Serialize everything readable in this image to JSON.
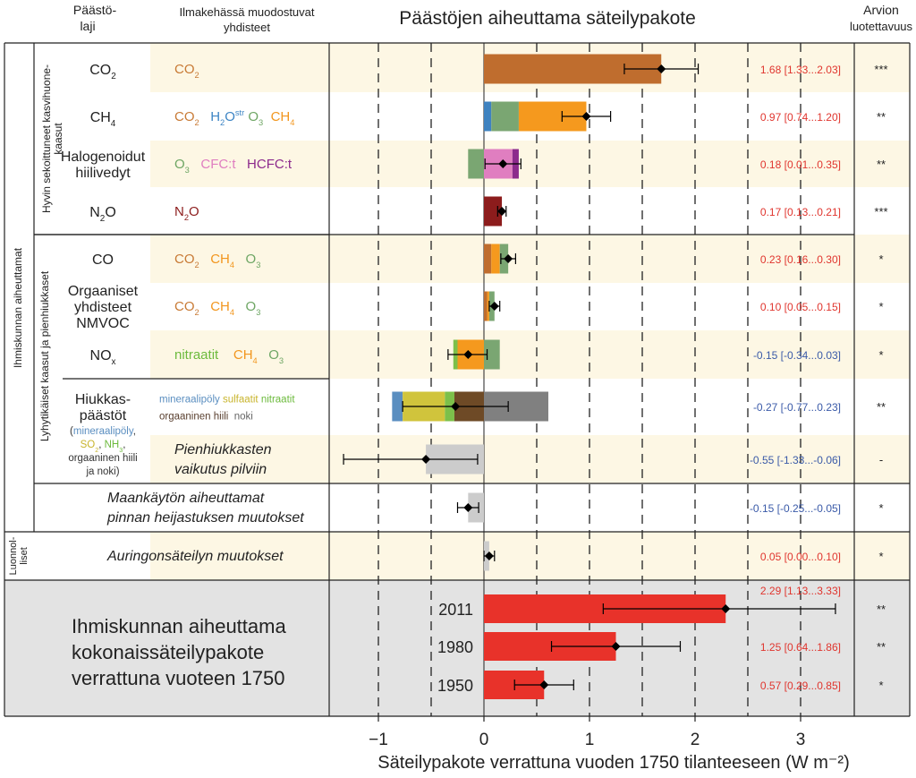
{
  "header": {
    "col_laji": [
      "Päästö-",
      "laji"
    ],
    "col_yhdisteet": [
      "Ilmakehässä muodostuvat",
      "yhdisteet"
    ],
    "title": "Päästöjen aiheuttama säteilypakote",
    "col_arvio": [
      "Arvion",
      "luotettavuus"
    ]
  },
  "groups": {
    "ihmiskunta": "Ihmiskunnan aiheuttamat",
    "hyvin": [
      "Hyvin sekoittuneet kasvihuone-",
      "kaasut"
    ],
    "lyhyt": "Lyhytikäiset kaasut ja pienhiukkaset",
    "luonnolliset": [
      "Luonnol-",
      "liset"
    ]
  },
  "rows": [
    {
      "label_lines": [
        [
          "CO",
          {
            "sub": "2"
          }
        ]
      ],
      "compounds": [
        [
          {
            "t": "CO",
            "c": "#c87a35"
          },
          {
            "sub": "2",
            "c": "#c87a35"
          }
        ]
      ],
      "value_text": "1.68 [1.33...2.03]",
      "confidence": "***"
    },
    {
      "label_lines": [
        [
          "CH",
          {
            "sub": "4"
          }
        ]
      ],
      "compounds": [
        [
          {
            "t": "CO",
            "c": "#c87a35"
          },
          {
            "sub": "2",
            "c": "#c87a35"
          },
          {
            "t": "   "
          },
          {
            "t": "H",
            "c": "#3c84c4"
          },
          {
            "sub": "2",
            "c": "#3c84c4"
          },
          {
            "t": "O",
            "c": "#3c84c4"
          },
          {
            "sup": "str",
            "c": "#3c84c4"
          },
          {
            "t": " "
          },
          {
            "t": "O",
            "c": "#6ea664"
          },
          {
            "sub": "3",
            "c": "#6ea664"
          },
          {
            "t": "  "
          },
          {
            "t": "CH",
            "c": "#f2961e"
          },
          {
            "sub": "4",
            "c": "#f2961e"
          }
        ]
      ],
      "value_text": "0.97 [0.74...1.20]",
      "confidence": "**"
    },
    {
      "label_lines": [
        [
          "Halogenoidut"
        ],
        [
          "hiilivedyt"
        ]
      ],
      "compounds": [
        [
          {
            "t": "O",
            "c": "#6ea664"
          },
          {
            "sub": "3",
            "c": "#6ea664"
          },
          {
            "t": "   "
          },
          {
            "t": "CFC:t",
            "c": "#e07ec0"
          },
          {
            "t": "   "
          },
          {
            "t": "HCFC:t",
            "c": "#8c2a8c"
          }
        ]
      ],
      "value_text": "0.18 [0.01...0.35]",
      "confidence": "**"
    },
    {
      "label_lines": [
        [
          "N",
          {
            "sub": "2"
          },
          "O"
        ]
      ],
      "compounds": [
        [
          {
            "t": "N",
            "c": "#8c1c1c"
          },
          {
            "sub": "2",
            "c": "#8c1c1c"
          },
          {
            "t": "O",
            "c": "#8c1c1c"
          }
        ]
      ],
      "value_text": "0.17 [0.13...0.21]",
      "confidence": "***"
    },
    {
      "label_lines": [
        [
          "CO"
        ]
      ],
      "compounds": [
        [
          {
            "t": "CO",
            "c": "#c87a35"
          },
          {
            "sub": "2",
            "c": "#c87a35"
          },
          {
            "t": "   "
          },
          {
            "t": "CH",
            "c": "#f2961e"
          },
          {
            "sub": "4",
            "c": "#f2961e"
          },
          {
            "t": "   "
          },
          {
            "t": "O",
            "c": "#6ea664"
          },
          {
            "sub": "3",
            "c": "#6ea664"
          }
        ]
      ],
      "value_text": "0.23 [0.16...0.30]",
      "confidence": "*"
    },
    {
      "label_lines": [
        [
          "Orgaaniset"
        ],
        [
          "yhdisteet"
        ],
        [
          "NMVOC"
        ]
      ],
      "compounds": [
        [
          {
            "t": "CO",
            "c": "#c87a35"
          },
          {
            "sub": "2",
            "c": "#c87a35"
          },
          {
            "t": "   "
          },
          {
            "t": "CH",
            "c": "#f2961e"
          },
          {
            "sub": "4",
            "c": "#f2961e"
          },
          {
            "t": "   "
          },
          {
            "t": "O",
            "c": "#6ea664"
          },
          {
            "sub": "3",
            "c": "#6ea664"
          }
        ]
      ],
      "value_text": "0.10 [0.05...0.15]",
      "confidence": "*"
    },
    {
      "label_lines": [
        [
          "NO",
          {
            "sub": "x"
          }
        ]
      ],
      "compounds": [
        [
          {
            "t": "nitraatit",
            "c": "#6cba3c"
          },
          {
            "t": "    "
          },
          {
            "t": "CH",
            "c": "#f2961e"
          },
          {
            "sub": "4",
            "c": "#f2961e"
          },
          {
            "t": "   "
          },
          {
            "t": "O",
            "c": "#6ea664"
          },
          {
            "sub": "3",
            "c": "#6ea664"
          }
        ]
      ],
      "value_text": "-0.15 [-0.34...0.03]",
      "confidence": "*"
    },
    {
      "label_lines": [
        [
          "Hiukkas-"
        ],
        [
          "päästöt"
        ]
      ],
      "compounds": [
        [
          {
            "t": "mineraalipöly",
            "c": "#5a8ec0"
          },
          {
            "t": " "
          },
          {
            "t": "sulfaatit",
            "c": "#c8b42c"
          },
          {
            "t": " "
          },
          {
            "t": "nitraatit",
            "c": "#6cba3c"
          }
        ],
        [
          {
            "t": "orgaaninen hiili",
            "c": "#5a4030"
          },
          {
            "t": "  "
          },
          {
            "t": "noki",
            "c": "#666666"
          }
        ]
      ],
      "value_text": "-0.27 [-0.77...0.23]",
      "confidence": "**"
    },
    {
      "label_lines": [],
      "compounds": [
        [
          {
            "t": "Pienhiukkasten",
            "i": true
          }
        ],
        [
          {
            "t": "vaikutus pilviin",
            "i": true
          }
        ]
      ],
      "value_text": "-0.55 [-1.33...-0.06]",
      "confidence": "-"
    },
    {
      "label_lines": [],
      "compounds": [
        [
          {
            "t": "Maankäytön aiheuttamat",
            "i": true
          }
        ],
        [
          {
            "t": "pinnan heijastuksen muutokset",
            "i": true
          }
        ]
      ],
      "value_text": "-0.15 [-0.25...-0.05]",
      "confidence": "*"
    },
    {
      "label_lines": [],
      "compounds": [
        [
          {
            "t": "Auringonsäteilyn muutokset",
            "i": true
          }
        ]
      ],
      "value_text": "0.05 [0.00...0.10]",
      "confidence": "*"
    }
  ],
  "aerosol_note": [
    [
      {
        "t": "("
      },
      {
        "t": "mineraalipöly",
        "c": "#5a8ec0"
      },
      {
        "t": ","
      }
    ],
    [
      {
        "t": "SO",
        "c": "#c8b42c"
      },
      {
        "sub": "2",
        "c": "#c8b42c"
      },
      {
        "t": ", "
      },
      {
        "t": "NH",
        "c": "#6cba3c"
      },
      {
        "sub": "3",
        "c": "#6cba3c"
      },
      {
        "t": ","
      }
    ],
    [
      {
        "t": "orgaaninen hiili"
      }
    ],
    [
      {
        "t": "ja noki)"
      }
    ]
  ],
  "total": {
    "heading": [
      "Ihmiskunnan aiheuttama",
      "kokonaissäteilypakote",
      "verrattuna vuoteen 1750"
    ],
    "years": [
      {
        "year": "2011",
        "value_text": "2.29 [1.13...3.33]",
        "confidence": "**"
      },
      {
        "year": "1980",
        "value_text": "1.25 [0.64...1.86]",
        "confidence": "**"
      },
      {
        "year": "1950",
        "value_text": "0.57 [0.29...0.85]",
        "confidence": "*"
      }
    ]
  },
  "chart_data": {
    "type": "bar",
    "orientation": "horizontal stacked",
    "title": "Päästöjen aiheuttama säteilypakote",
    "xlabel": "Säteilypakote verrattuna vuoden 1750 tilanteeseen (W m⁻²)",
    "xlim": [
      -1.5,
      3.5
    ],
    "xticks": [
      -1,
      0,
      1,
      2,
      3
    ],
    "xtick_labels": [
      "−1",
      "0",
      "1",
      "2",
      "3"
    ],
    "dashed_gridlines": [
      -1,
      -0.5,
      0.5,
      1,
      1.5,
      2,
      2.5,
      3
    ],
    "colors": {
      "CO2": "#bf6d2e",
      "H2O": "#3e82c0",
      "O3": "#7aa672",
      "CH4": "#f5991e",
      "CFC": "#e07ec0",
      "HCFC": "#8c2a8c",
      "N2O": "#8c1c1c",
      "dust": "#5a8ec0",
      "sulfate": "#d0c43c",
      "nitrate": "#7cc04a",
      "organic_carbon": "#6e4a26",
      "black_carbon": "#808080",
      "cloud": "#cccccc",
      "albedo": "#cccccc",
      "solar": "#cccccc",
      "total": "#e8322a"
    },
    "rows": [
      {
        "name": "CO2",
        "segments": [
          {
            "c": "CO2",
            "from": 0,
            "to": 1.68
          }
        ],
        "best": 1.68,
        "low": 1.33,
        "high": 2.03
      },
      {
        "name": "CH4",
        "segments": [
          {
            "c": "H2O",
            "from": 0,
            "to": 0.07
          },
          {
            "c": "O3",
            "from": 0.07,
            "to": 0.33
          },
          {
            "c": "CH4",
            "from": 0.33,
            "to": 0.97
          }
        ],
        "best": 0.97,
        "low": 0.74,
        "high": 1.2
      },
      {
        "name": "Halogenoidut hiilivedyt",
        "segments": [
          {
            "c": "O3",
            "from": -0.15,
            "to": 0
          },
          {
            "c": "CFC",
            "from": 0,
            "to": 0.27
          },
          {
            "c": "HCFC",
            "from": 0.27,
            "to": 0.33
          }
        ],
        "best": 0.18,
        "low": 0.01,
        "high": 0.35
      },
      {
        "name": "N2O",
        "segments": [
          {
            "c": "N2O",
            "from": 0,
            "to": 0.17
          }
        ],
        "best": 0.17,
        "low": 0.13,
        "high": 0.21
      },
      {
        "name": "CO",
        "segments": [
          {
            "c": "CO2",
            "from": 0,
            "to": 0.07
          },
          {
            "c": "CH4",
            "from": 0.07,
            "to": 0.15
          },
          {
            "c": "O3",
            "from": 0.15,
            "to": 0.23
          }
        ],
        "best": 0.23,
        "low": 0.16,
        "high": 0.3
      },
      {
        "name": "NMVOC",
        "segments": [
          {
            "c": "CO2",
            "from": 0,
            "to": 0.03
          },
          {
            "c": "CH4",
            "from": 0.03,
            "to": 0.05
          },
          {
            "c": "O3",
            "from": 0.05,
            "to": 0.1
          }
        ],
        "best": 0.1,
        "low": 0.05,
        "high": 0.15
      },
      {
        "name": "NOx",
        "segments": [
          {
            "c": "nitrate",
            "from": -0.29,
            "to": -0.25
          },
          {
            "c": "CH4",
            "from": -0.25,
            "to": 0
          },
          {
            "c": "O3",
            "from": 0,
            "to": 0.15
          }
        ],
        "best": -0.15,
        "low": -0.34,
        "high": 0.03
      },
      {
        "name": "Hiukkaspäästöt",
        "segments": [
          {
            "c": "dust",
            "from": -0.87,
            "to": -0.77
          },
          {
            "c": "sulfate",
            "from": -0.77,
            "to": -0.37
          },
          {
            "c": "nitrate",
            "from": -0.37,
            "to": -0.28
          },
          {
            "c": "organic_carbon",
            "from": -0.28,
            "to": 0
          },
          {
            "c": "black_carbon",
            "from": 0,
            "to": 0.61
          }
        ],
        "best": -0.27,
        "low": -0.77,
        "high": 0.23
      },
      {
        "name": "Pienhiukkasten vaikutus pilviin",
        "segments": [
          {
            "c": "cloud",
            "from": -0.55,
            "to": 0
          }
        ],
        "best": -0.55,
        "low": -1.33,
        "high": -0.06
      },
      {
        "name": "Maankäytön muutokset",
        "segments": [
          {
            "c": "albedo",
            "from": -0.15,
            "to": 0
          }
        ],
        "best": -0.15,
        "low": -0.25,
        "high": -0.05
      },
      {
        "name": "Auringonsäteily",
        "segments": [
          {
            "c": "solar",
            "from": 0,
            "to": 0.05
          }
        ],
        "best": 0.05,
        "low": 0.0,
        "high": 0.1
      },
      {
        "name": "2011",
        "segments": [
          {
            "c": "total",
            "from": 0,
            "to": 2.29
          }
        ],
        "best": 2.29,
        "low": 1.13,
        "high": 3.33
      },
      {
        "name": "1980",
        "segments": [
          {
            "c": "total",
            "from": 0,
            "to": 1.25
          }
        ],
        "best": 1.25,
        "low": 0.64,
        "high": 1.86
      },
      {
        "name": "1950",
        "segments": [
          {
            "c": "total",
            "from": 0,
            "to": 0.57
          }
        ],
        "best": 0.57,
        "low": 0.29,
        "high": 0.85
      }
    ]
  }
}
